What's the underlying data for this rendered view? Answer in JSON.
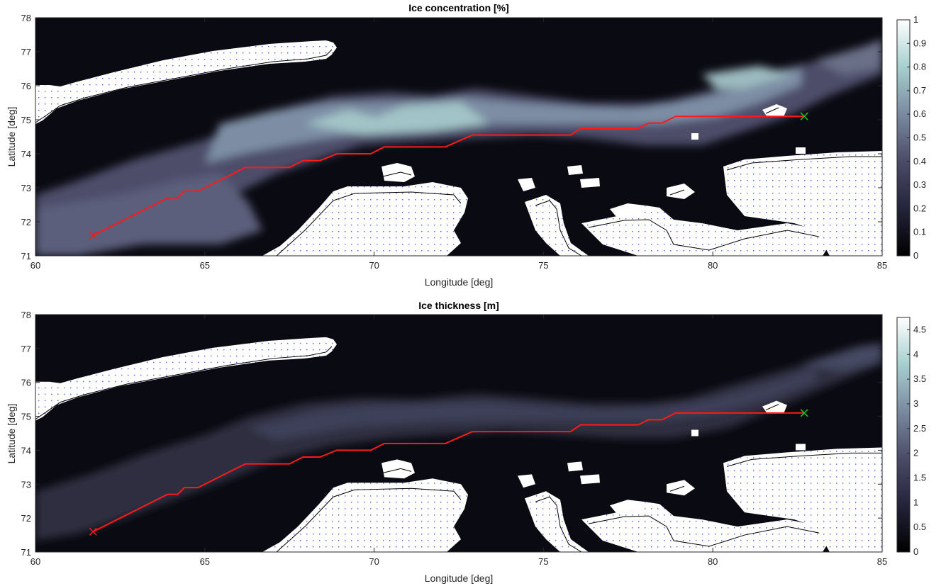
{
  "colors": {
    "background": "#0a0a12",
    "land": "#ffffff",
    "land_dots": "#4b5cf0",
    "coastline": "#000000",
    "route": "#ff1a1a",
    "start_marker": "#e62020",
    "end_marker": "#22c21b",
    "colormap": [
      "#000000",
      "#3b3b55",
      "#6d6e8c",
      "#8fa7b3",
      "#b5d6d5",
      "#ffffff"
    ]
  },
  "chart_data": [
    {
      "type": "heatmap",
      "title": "Ice concentration  [%]",
      "xlabel": "Longitude [deg]",
      "ylabel": "Latitude [deg]",
      "xlim": [
        60,
        85
      ],
      "ylim": [
        71,
        78
      ],
      "x_ticks": [
        "60",
        "65",
        "70",
        "75",
        "80",
        "85"
      ],
      "y_ticks": [
        "71",
        "72",
        "73",
        "74",
        "75",
        "76",
        "77",
        "78"
      ],
      "colorbar_ticks": [
        "0",
        "0.1",
        "0.2",
        "0.3",
        "0.4",
        "0.5",
        "0.6",
        "0.7",
        "0.8",
        "0.9",
        "1"
      ],
      "colorbar_range": [
        0,
        1
      ]
    },
    {
      "type": "heatmap",
      "title": "Ice thickness [m]",
      "xlabel": "Longitude [deg]",
      "ylabel": "Latitude [deg]",
      "xlim": [
        60,
        85
      ],
      "ylim": [
        71,
        78
      ],
      "x_ticks": [
        "60",
        "65",
        "70",
        "75",
        "80",
        "85"
      ],
      "y_ticks": [
        "71",
        "72",
        "73",
        "74",
        "75",
        "76",
        "77",
        "78"
      ],
      "colorbar_ticks": [
        "0",
        "0.5",
        "1",
        "1.5",
        "2",
        "2.5",
        "3",
        "3.5",
        "4",
        "4.5"
      ],
      "colorbar_range": [
        0,
        4.75
      ]
    }
  ],
  "route": {
    "lon": [
      61.7,
      63.9,
      64.2,
      64.4,
      64.8,
      66.2,
      67.5,
      67.9,
      68.4,
      68.9,
      69.9,
      70.3,
      72.1,
      72.9,
      75.8,
      76.1,
      77.8,
      78.1,
      78.5,
      78.9,
      82.7
    ],
    "lat": [
      71.6,
      72.7,
      72.7,
      72.9,
      72.9,
      73.6,
      73.6,
      73.8,
      73.8,
      74.0,
      74.0,
      74.2,
      74.2,
      74.55,
      74.55,
      74.75,
      74.75,
      74.9,
      74.9,
      75.1,
      75.1
    ]
  },
  "start_point": {
    "lon": 61.7,
    "lat": 71.6
  },
  "end_point": {
    "lon": 82.7,
    "lat": 75.1
  }
}
